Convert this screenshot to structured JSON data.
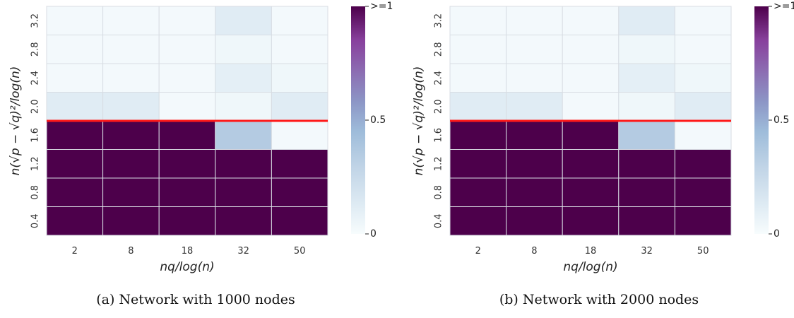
{
  "chart_data": [
    {
      "type": "heatmap",
      "caption": "(a) Network with 1000 nodes",
      "xlabel": "nq/log(n)",
      "ylabel": "n(√p − √q)²/log(n)",
      "x_categories": [
        "2",
        "8",
        "18",
        "32",
        "50"
      ],
      "y_categories": [
        "3.2",
        "2.8",
        "2.4",
        "2.0",
        "1.6",
        "1.2",
        "0.8",
        "0.4"
      ],
      "values": [
        [
          0.02,
          0.02,
          0.02,
          0.12,
          0.02
        ],
        [
          0.02,
          0.02,
          0.02,
          0.04,
          0.02
        ],
        [
          0.02,
          0.02,
          0.02,
          0.1,
          0.04
        ],
        [
          0.12,
          0.12,
          0.02,
          0.04,
          0.12
        ],
        [
          1.0,
          1.0,
          1.0,
          0.35,
          0.02
        ],
        [
          1.0,
          1.0,
          1.0,
          1.0,
          1.0
        ],
        [
          1.0,
          1.0,
          1.0,
          1.0,
          1.0
        ],
        [
          1.0,
          1.0,
          1.0,
          1.0,
          1.0
        ]
      ],
      "threshold_line_y": 1.8,
      "threshold_color": "#ff1a1a",
      "colorbar": {
        "min": 0,
        "max": 1,
        "ticks": [
          "0",
          "0.5",
          ">=1"
        ],
        "colormap": "BuPu"
      }
    },
    {
      "type": "heatmap",
      "caption": "(b) Network with 2000 nodes",
      "xlabel": "nq/log(n)",
      "ylabel": "n(√p − √q)²/log(n)",
      "x_categories": [
        "2",
        "8",
        "18",
        "32",
        "50"
      ],
      "y_categories": [
        "3.2",
        "2.8",
        "2.4",
        "2.0",
        "1.6",
        "1.2",
        "0.8",
        "0.4"
      ],
      "values": [
        [
          0.02,
          0.02,
          0.02,
          0.12,
          0.02
        ],
        [
          0.02,
          0.02,
          0.02,
          0.04,
          0.02
        ],
        [
          0.02,
          0.02,
          0.02,
          0.1,
          0.04
        ],
        [
          0.12,
          0.12,
          0.02,
          0.04,
          0.12
        ],
        [
          1.0,
          1.0,
          1.0,
          0.35,
          0.02
        ],
        [
          1.0,
          1.0,
          1.0,
          1.0,
          1.0
        ],
        [
          1.0,
          1.0,
          1.0,
          1.0,
          1.0
        ],
        [
          1.0,
          1.0,
          1.0,
          1.0,
          1.0
        ]
      ],
      "threshold_line_y": 1.8,
      "threshold_color": "#ff1a1a",
      "colorbar": {
        "min": 0,
        "max": 1,
        "ticks": [
          "0",
          "0.5",
          ">=1"
        ],
        "colormap": "BuPu"
      }
    }
  ]
}
